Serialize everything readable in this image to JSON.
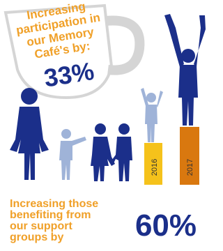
{
  "header": {
    "lines": [
      "Increasing",
      "participation in",
      "our Memory",
      "Café's by:"
    ],
    "value": "33%"
  },
  "bars": [
    {
      "label": "2016"
    },
    {
      "label": "2017"
    }
  ],
  "footer": {
    "lines": [
      "Increasing those",
      "benefiting from",
      "our support",
      "groups by"
    ],
    "value": "60%"
  }
}
